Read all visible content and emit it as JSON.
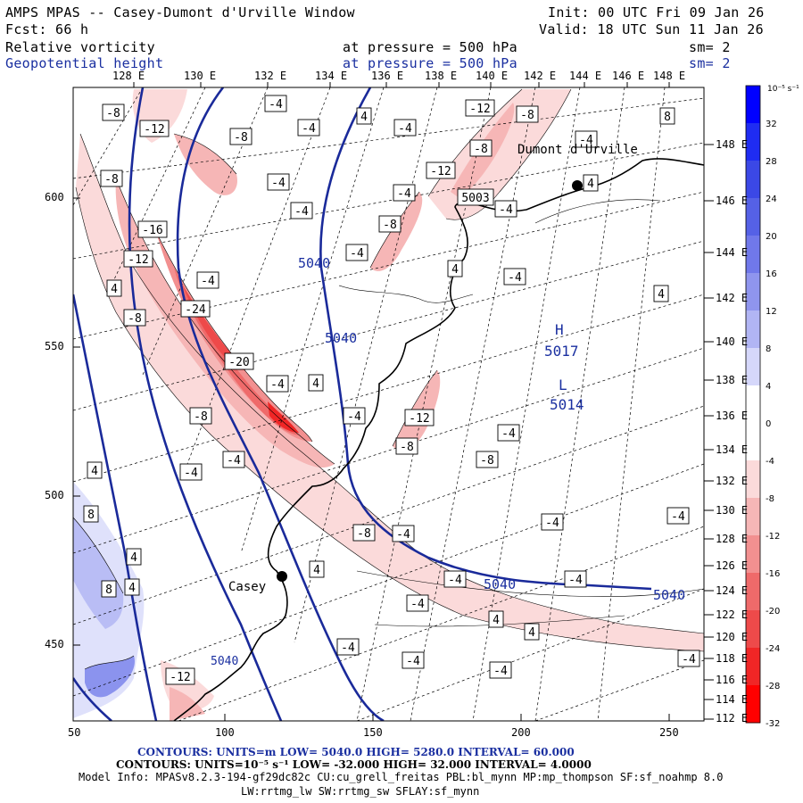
{
  "header": {
    "title": "AMPS MPAS -- Casey-Dumont d'Urville Window",
    "init": "Init: 00 UTC Fri 09 Jan 26",
    "forecast": "Fcst:    66 h",
    "valid": "Valid: 18 UTC Sun 11 Jan 26",
    "field1": {
      "name": "Relative vorticity",
      "pressure": "at pressure =  500 hPa",
      "sm": "sm= 2"
    },
    "field2": {
      "name": "Geopotential height",
      "pressure": "at pressure =  500 hPa",
      "sm": "sm= 2"
    }
  },
  "top_longitudes": [
    "128 E",
    "130 E",
    "132 E",
    "134 E",
    "136 E",
    "138 E",
    "140 E",
    "142 E",
    "144 E",
    "146 E",
    "148 E"
  ],
  "right_longitudes": [
    "148 E",
    "146 E",
    "144 E",
    "142 E",
    "140 E",
    "138 E",
    "136 E",
    "134 E",
    "132 E",
    "130 E",
    "128 E",
    "126 E",
    "124 E",
    "122 E",
    "120 E",
    "118 E",
    "116 E",
    "114 E",
    "112 E"
  ],
  "x_ticks": [
    "50",
    "100",
    "150",
    "200",
    "250"
  ],
  "y_ticks": [
    "600",
    "550",
    "500",
    "450"
  ],
  "colorbar": {
    "unit": "10⁻⁵ s⁻¹",
    "labels": [
      "32",
      "28",
      "24",
      "20",
      "16",
      "12",
      "8",
      "4",
      "0",
      "-4",
      "-8",
      "-12",
      "-16",
      "-20",
      "-24",
      "-28",
      "-32"
    ],
    "colors": [
      "#0000ff",
      "#1f2cf2",
      "#3b48e6",
      "#5561e6",
      "#7078ea",
      "#8f95ee",
      "#b1b5f4",
      "#d5d7fa",
      "#ffffff",
      "#ffffff",
      "#fbdada",
      "#f6b6b6",
      "#f29090",
      "#ef6a6a",
      "#ee4a4a",
      "#f02626",
      "#ff0000"
    ]
  },
  "places": [
    {
      "name": "Dumont d'Urville"
    },
    {
      "name": "Casey"
    }
  ],
  "height_labels": [
    "5040",
    "5040",
    "5040",
    "5040",
    "5040"
  ],
  "pressure_centers": [
    {
      "type": "H",
      "value": "5017"
    },
    {
      "type": "L",
      "value": "5014"
    }
  ],
  "vort_labels": [
    "-8",
    "-12",
    "-8",
    "-8",
    "-4",
    "-4",
    "4",
    "-4",
    "-4",
    "-16",
    "-12",
    "-4",
    "-24",
    "-20",
    "-4",
    "4",
    "-8",
    "4",
    "-8",
    "-12",
    "-8",
    "-12",
    "-8",
    "-4",
    "4",
    "-4",
    "-4",
    "-4",
    "-4",
    "4",
    "-8",
    "-12",
    "-8",
    "-4",
    "-4",
    "-8",
    "-4",
    "-4",
    "-4",
    "4",
    "4",
    "-4",
    "-4",
    "-4",
    "4",
    "8",
    "4",
    "8",
    "4",
    "-4",
    "-4",
    "-4",
    "-8",
    "-12",
    "-4",
    "-4",
    "4",
    "-4",
    "8",
    "4",
    "-4",
    "5003"
  ],
  "footer": {
    "contours1": "CONTOURS:  UNITS=m  LOW=  5040.0        HIGH=  5280.0        INTERVAL=   60.000",
    "contours2": "CONTOURS:  UNITS=10⁻⁵ s⁻¹  LOW= -32.000        HIGH=  32.000        INTERVAL=   4.0000",
    "model_info": "Model Info: MPASv8.2.3-194-gf29dc82c CU:cu_grell_freitas PBL:bl_mynn MP:mp_thompson SF:sf_noahmp 8.0",
    "model_info2": "LW:rrtmg_lw SW:rrtmg_sw SFLAY:sf_mynn"
  }
}
